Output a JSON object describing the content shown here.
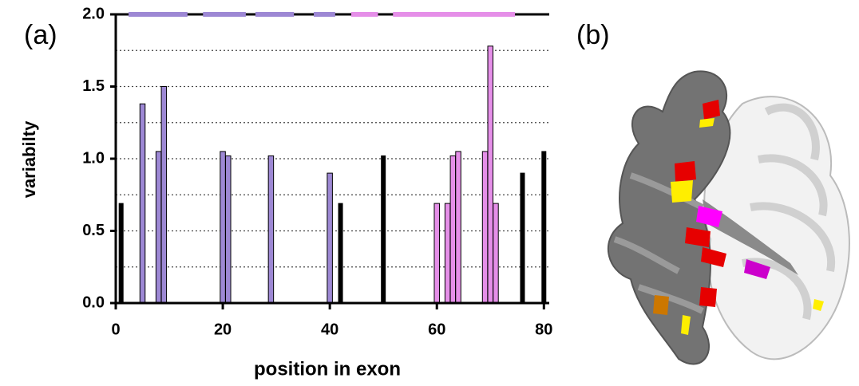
{
  "panel_a": "(a)",
  "panel_b": "(b)",
  "chart_data": {
    "type": "bar",
    "x_label": "position in exon",
    "y_label": "variabilty",
    "x": [
      1,
      5,
      8,
      9,
      20,
      21,
      29,
      40,
      42,
      50,
      60,
      62,
      63,
      64,
      69,
      70,
      71,
      76,
      80
    ],
    "values": [
      0.69,
      1.38,
      1.05,
      1.5,
      1.05,
      1.02,
      1.02,
      0.9,
      0.69,
      1.02,
      0.69,
      0.69,
      1.02,
      1.05,
      1.05,
      1.78,
      0.69,
      0.9,
      1.05
    ],
    "colors": [
      "#000000",
      "#9d88d4",
      "#9d88d4",
      "#9d88d4",
      "#9d88d4",
      "#9d88d4",
      "#9d88d4",
      "#9d88d4",
      "#000000",
      "#000000",
      "#e58fe8",
      "#e58fe8",
      "#e58fe8",
      "#e58fe8",
      "#e58fe8",
      "#e58fe8",
      "#e58fe8",
      "#000000",
      "#000000"
    ],
    "segments": [
      {
        "start": 2.4,
        "end": 13.4,
        "color": "#9d88d4"
      },
      {
        "start": 16.3,
        "end": 24.3,
        "color": "#9d88d4"
      },
      {
        "start": 26.1,
        "end": 33.3,
        "color": "#9d88d4"
      },
      {
        "start": 37,
        "end": 41,
        "color": "#9d88d4"
      },
      {
        "start": 44,
        "end": 49,
        "color": "#e58fe8"
      },
      {
        "start": 51.8,
        "end": 74.6,
        "color": "#e58fe8"
      }
    ],
    "xlim": [
      0,
      81
    ],
    "ylim": [
      0,
      2
    ],
    "xticks": [
      0,
      20,
      40,
      60,
      80
    ],
    "yticks": [
      {
        "value": 0,
        "label": "0.0"
      },
      {
        "value": 0.5,
        "label": "0.5"
      },
      {
        "value": 1,
        "label": "1.0"
      },
      {
        "value": 1.5,
        "label": "1.5"
      },
      {
        "value": 2,
        "label": "2.0"
      }
    ],
    "grid_lines": [
      0.25,
      0.5,
      0.75,
      1,
      1.25,
      1.5,
      1.75
    ],
    "grid": true
  }
}
